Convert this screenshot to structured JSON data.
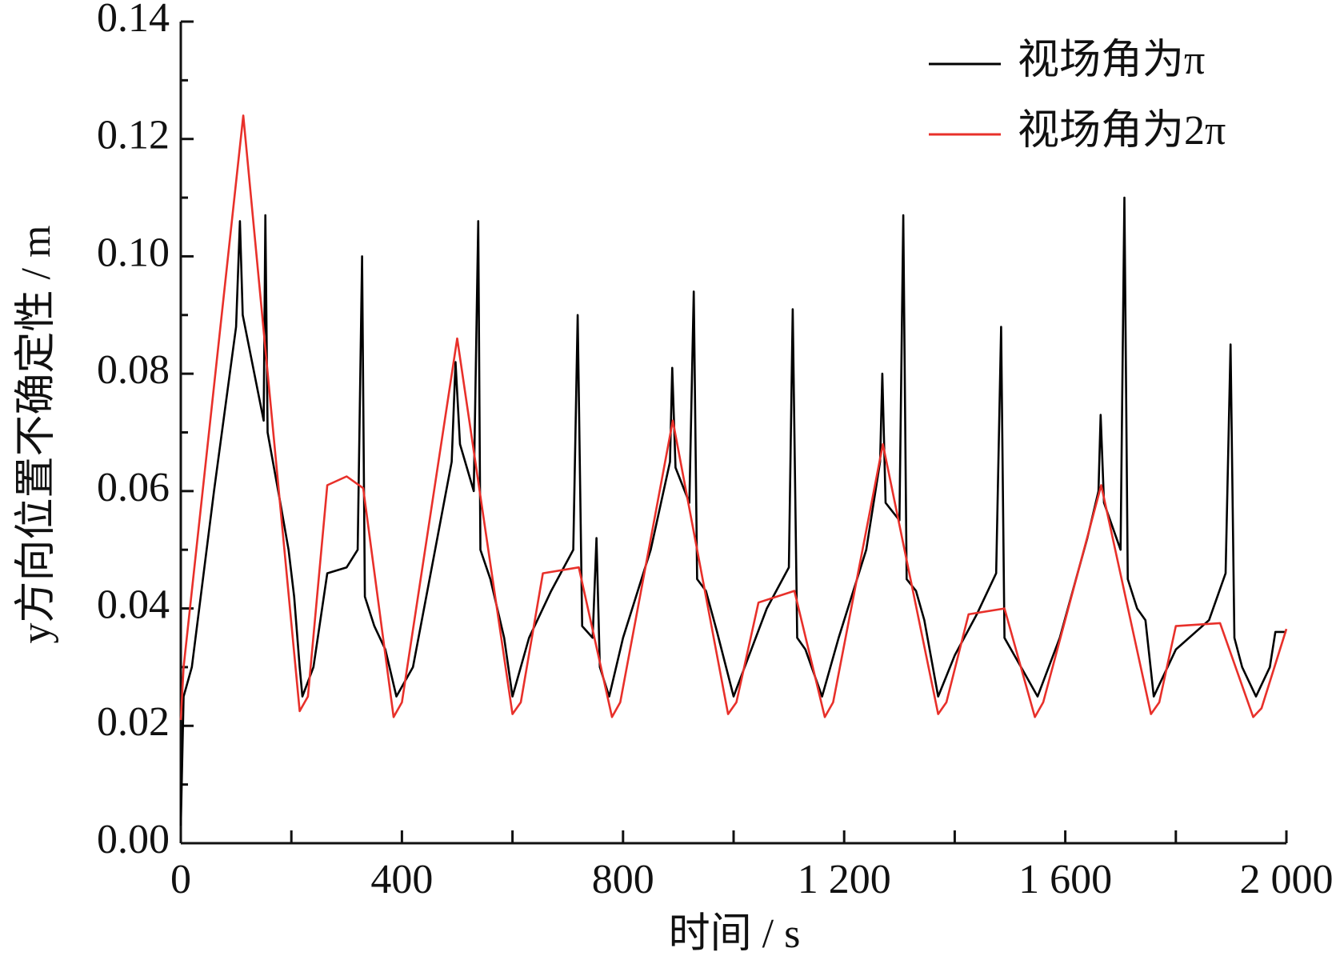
{
  "chart_data": {
    "type": "line",
    "xlabel": "时间 / s",
    "ylabel": "y方向位置不确定性 / m",
    "xlim": [
      0,
      2000
    ],
    "ylim": [
      0,
      0.14
    ],
    "xticks": [
      0,
      400,
      800,
      {
        "value": 1200,
        "label": "1 200"
      },
      {
        "value": 1600,
        "label": "1 600"
      },
      {
        "value": 2000,
        "label": "2 000"
      }
    ],
    "xminor": [
      200,
      600,
      1000,
      1400,
      1800
    ],
    "yticks": [
      {
        "value": 0,
        "label": "0.00"
      },
      0.02,
      0.04,
      0.06,
      0.08,
      {
        "value": 0.1,
        "label": "0.10"
      },
      0.12,
      0.14
    ],
    "yminor": [
      0.01,
      0.03,
      0.05,
      0.07,
      0.09,
      0.11,
      0.13
    ],
    "legend": "upper right",
    "series": [
      {
        "name": "视场角为π",
        "color": "#000000",
        "x": [
          0,
          5,
          20,
          60,
          100,
          107,
          112,
          150,
          153,
          157,
          180,
          195,
          205,
          215,
          220,
          240,
          265,
          300,
          320,
          328,
          333,
          350,
          370,
          390,
          420,
          460,
          490,
          497,
          505,
          530,
          538,
          542,
          560,
          585,
          600,
          630,
          670,
          710,
          718,
          726,
          745,
          752,
          758,
          775,
          800,
          850,
          885,
          889,
          895,
          920,
          928,
          934,
          950,
          970,
          1000,
          1020,
          1060,
          1100,
          1107,
          1115,
          1130,
          1160,
          1190,
          1240,
          1265,
          1269,
          1275,
          1300,
          1307,
          1313,
          1330,
          1345,
          1370,
          1400,
          1440,
          1475,
          1484,
          1490,
          1520,
          1550,
          1590,
          1640,
          1660,
          1664,
          1670,
          1700,
          1707,
          1713,
          1730,
          1745,
          1760,
          1800,
          1860,
          1890,
          1899,
          1906,
          1920,
          1945,
          1970,
          1980,
          2000
        ],
        "values": [
          0.003,
          0.025,
          0.03,
          0.06,
          0.088,
          0.106,
          0.09,
          0.072,
          0.107,
          0.07,
          0.058,
          0.05,
          0.042,
          0.03,
          0.025,
          0.03,
          0.046,
          0.047,
          0.05,
          0.1,
          0.042,
          0.037,
          0.033,
          0.025,
          0.03,
          0.05,
          0.065,
          0.082,
          0.068,
          0.06,
          0.106,
          0.05,
          0.045,
          0.035,
          0.025,
          0.035,
          0.043,
          0.05,
          0.09,
          0.037,
          0.035,
          0.052,
          0.03,
          0.025,
          0.035,
          0.05,
          0.065,
          0.081,
          0.064,
          0.058,
          0.094,
          0.045,
          0.043,
          0.036,
          0.025,
          0.03,
          0.04,
          0.047,
          0.091,
          0.035,
          0.033,
          0.025,
          0.035,
          0.05,
          0.065,
          0.08,
          0.058,
          0.055,
          0.107,
          0.045,
          0.043,
          0.038,
          0.025,
          0.032,
          0.039,
          0.046,
          0.088,
          0.035,
          0.03,
          0.025,
          0.035,
          0.052,
          0.06,
          0.073,
          0.058,
          0.05,
          0.11,
          0.045,
          0.04,
          0.038,
          0.025,
          0.033,
          0.038,
          0.046,
          0.085,
          0.035,
          0.03,
          0.025,
          0.03,
          0.036,
          0.036
        ]
      },
      {
        "name": "视场角为2π",
        "color": "#e8302a",
        "x": [
          0,
          5,
          113,
          215,
          230,
          265,
          300,
          330,
          385,
          400,
          500,
          600,
          615,
          655,
          720,
          780,
          795,
          890,
          990,
          1005,
          1045,
          1110,
          1165,
          1180,
          1270,
          1370,
          1385,
          1425,
          1490,
          1545,
          1560,
          1665,
          1755,
          1770,
          1800,
          1880,
          1940,
          1955,
          2000
        ],
        "values": [
          0.021,
          0.03,
          0.124,
          0.0225,
          0.025,
          0.061,
          0.0625,
          0.0605,
          0.0215,
          0.024,
          0.086,
          0.022,
          0.024,
          0.046,
          0.047,
          0.0215,
          0.024,
          0.072,
          0.022,
          0.024,
          0.041,
          0.043,
          0.0215,
          0.024,
          0.068,
          0.022,
          0.024,
          0.039,
          0.04,
          0.0215,
          0.024,
          0.061,
          0.022,
          0.024,
          0.037,
          0.0375,
          0.0215,
          0.023,
          0.0365
        ]
      }
    ]
  }
}
